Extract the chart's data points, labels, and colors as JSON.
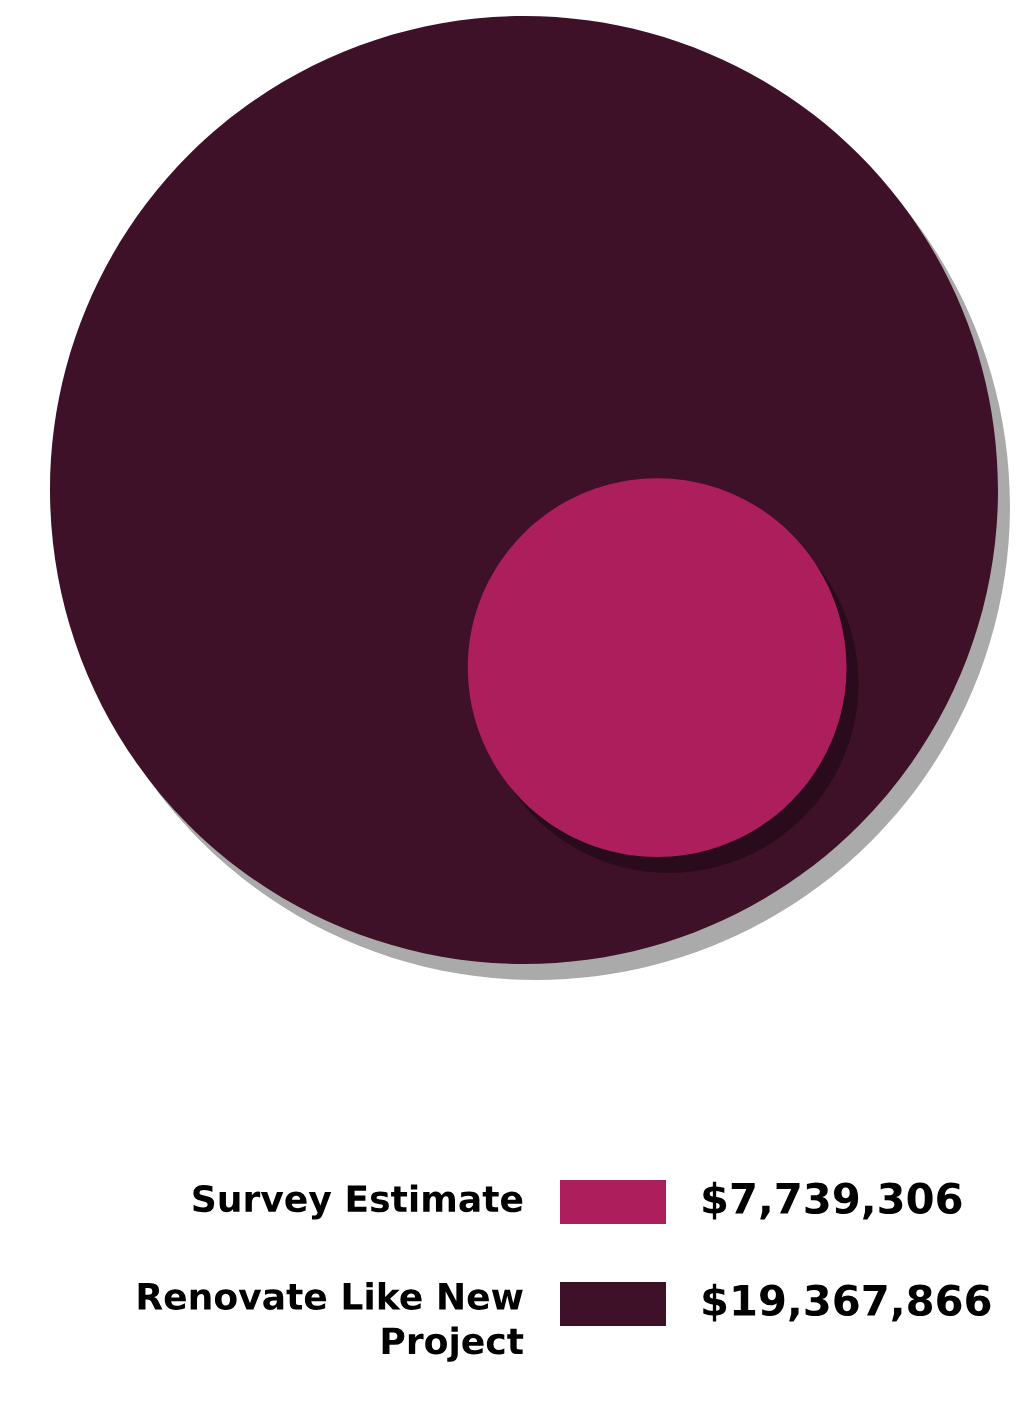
{
  "chart_data": {
    "type": "other",
    "categories": [
      "Survey Estimate",
      "Renovate Like New Project"
    ],
    "values": [
      7739306,
      19367866
    ],
    "value_labels": [
      "$7,739,306",
      "$19,367,866"
    ],
    "colors": [
      "#ad1e5c",
      "#3e1129"
    ]
  }
}
